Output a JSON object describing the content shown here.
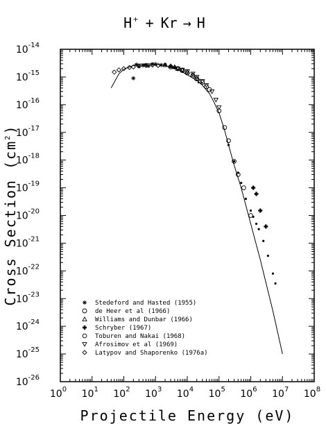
{
  "chart_data": {
    "type": "scatter",
    "title": "H⁺ + Kr → H",
    "title_parts": {
      "lhs1": "H",
      "lhs1_sup": "+",
      "plus": "+",
      "lhs2": "Kr",
      "arrow": "→",
      "rhs": "H"
    },
    "xlabel": "Projectile Energy (eV)",
    "ylabel_text": "Cross Section (cm",
    "ylabel_sup": "2",
    "ylabel_close": ")",
    "x_scale": "log",
    "y_scale": "log",
    "xlim": [
      1,
      100000000
    ],
    "ylim": [
      1e-26,
      1e-14
    ],
    "grid": false,
    "legend_position": "lower-left",
    "x_ticks": [
      {
        "base": "10",
        "exp": "0",
        "value": 1
      },
      {
        "base": "10",
        "exp": "1",
        "value": 10
      },
      {
        "base": "10",
        "exp": "2",
        "value": 100
      },
      {
        "base": "10",
        "exp": "3",
        "value": 1000
      },
      {
        "base": "10",
        "exp": "4",
        "value": 10000
      },
      {
        "base": "10",
        "exp": "5",
        "value": 100000
      },
      {
        "base": "10",
        "exp": "6",
        "value": 1000000
      },
      {
        "base": "10",
        "exp": "7",
        "value": 10000000
      },
      {
        "base": "10",
        "exp": "8",
        "value": 100000000
      }
    ],
    "y_ticks": [
      {
        "base": "10",
        "exp": "-14",
        "value": 1e-14
      },
      {
        "base": "10",
        "exp": "-15",
        "value": 1e-15
      },
      {
        "base": "10",
        "exp": "-16",
        "value": 1e-16
      },
      {
        "base": "10",
        "exp": "-17",
        "value": 1e-17
      },
      {
        "base": "10",
        "exp": "-18",
        "value": 1e-18
      },
      {
        "base": "10",
        "exp": "-19",
        "value": 1e-19
      },
      {
        "base": "10",
        "exp": "-20",
        "value": 1e-20
      },
      {
        "base": "10",
        "exp": "-21",
        "value": 1e-21
      },
      {
        "base": "10",
        "exp": "-22",
        "value": 1e-22
      },
      {
        "base": "10",
        "exp": "-23",
        "value": 1e-23
      },
      {
        "base": "10",
        "exp": "-24",
        "value": 1e-24
      },
      {
        "base": "10",
        "exp": "-25",
        "value": 1e-25
      },
      {
        "base": "10",
        "exp": "-26",
        "value": 1e-26
      }
    ],
    "fit_curve": {
      "x": [
        40,
        70,
        100,
        150,
        200,
        300,
        500,
        700,
        1000,
        2000,
        3000,
        5000,
        10000,
        20000,
        30000,
        50000,
        70000,
        100000,
        150000,
        200000,
        300000,
        500000,
        1000000,
        2000000,
        5000000,
        10000000
      ],
      "y": [
        4e-16,
        1.3e-15,
        1.9e-15,
        2.3e-15,
        2.6e-15,
        2.9e-15,
        3e-15,
        3e-15,
        2.9e-15,
        2.6e-15,
        2.3e-15,
        1.9e-15,
        1.2e-15,
        7.5e-16,
        5e-16,
        2.5e-16,
        1.2e-16,
        5e-17,
        1.2e-17,
        3.5e-18,
        6.5e-19,
        1e-19,
        5e-21,
        2.5e-22,
        3.5e-24,
        1e-25
      ]
    },
    "series": [
      {
        "name": "Stedeford and Hasted (1955)",
        "marker": "asterisk",
        "x": [
          200,
          250,
          300,
          400,
          500,
          600,
          800,
          1000,
          1500,
          2000,
          3000,
          4000
        ],
        "y": [
          9e-16,
          2.8e-15,
          2.4e-15,
          2.6e-15,
          2.7e-15,
          2.5e-15,
          2.9e-15,
          2.9e-15,
          2.7e-15,
          2.8e-15,
          2.4e-15,
          2.2e-15
        ]
      },
      {
        "name": "de Heer et al (1966)",
        "marker": "circle",
        "x": [
          3000,
          5000,
          7000,
          10000,
          15000,
          20000,
          30000,
          40000,
          50000
        ],
        "y": [
          2.3e-15,
          2e-15,
          1.7e-15,
          1.4e-15,
          1.1e-15,
          8.5e-16,
          6.5e-16,
          4.5e-16,
          3.5e-16
        ]
      },
      {
        "name": "Williams and Dunbar (1966)",
        "marker": "triangle-up",
        "x": [
          2000,
          3000,
          4000,
          5000,
          7000,
          10000,
          15000,
          20000,
          25000
        ],
        "y": [
          2.7e-15,
          2.5e-15,
          2.3e-15,
          2e-15,
          1.8e-15,
          1.5e-15,
          1.2e-15,
          9e-16,
          7e-16
        ]
      },
      {
        "name": "Schryber (1967)",
        "marker": "plus-filled",
        "x": [
          1200000,
          1500000,
          2000000,
          3000000
        ],
        "y": [
          1e-19,
          6e-20,
          1.5e-20,
          4e-21
        ]
      },
      {
        "name": "Toburen and Nakai (1968)",
        "marker": "octagon",
        "x": [
          100000,
          150000,
          200000,
          300000,
          400000,
          600000,
          1000000
        ],
        "y": [
          6e-17,
          1.5e-17,
          5e-18,
          9e-19,
          3e-19,
          1e-19,
          1e-20
        ]
      },
      {
        "name": "Afrosimov et al (1969)",
        "marker": "triangle-down",
        "x": [
          5000,
          7000,
          10000,
          15000,
          20000,
          30000,
          40000,
          60000,
          80000,
          100000
        ],
        "y": [
          2e-15,
          1.8e-15,
          1.6e-15,
          1.3e-15,
          1e-15,
          7e-16,
          5e-16,
          3e-16,
          1.5e-16,
          8e-17
        ]
      },
      {
        "name": "Latypov and Shaporenko (1976a)",
        "marker": "diamond",
        "x": [
          50,
          70,
          100,
          150,
          200,
          300,
          500,
          800,
          1200
        ],
        "y": [
          1.5e-15,
          1.8e-15,
          2e-15,
          2.2e-15,
          2.3e-15,
          2.5e-15,
          2.6e-15,
          2.7e-15,
          2.6e-15
        ]
      }
    ],
    "extra_points": {
      "x": [
        200000,
        300000,
        400000,
        500000,
        700000,
        1000000,
        1200000,
        1500000,
        1800000,
        2500000,
        3500000,
        5000000,
        6000000
      ],
      "y": [
        3.5e-18,
        9e-19,
        3.5e-19,
        1.5e-19,
        4e-20,
        1.5e-20,
        9e-21,
        5e-21,
        3.2e-21,
        1.2e-21,
        3.5e-22,
        8e-23,
        3.5e-23
      ]
    }
  }
}
